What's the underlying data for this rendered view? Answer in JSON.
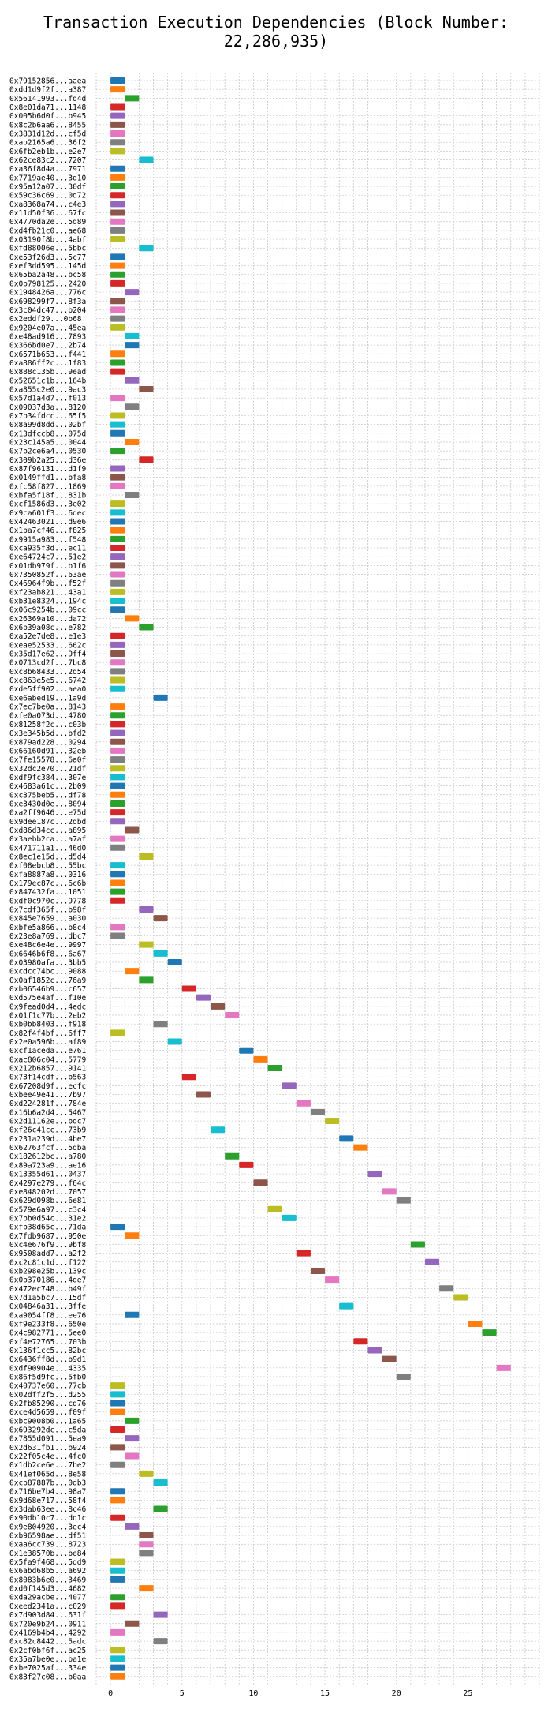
{
  "chart_data": {
    "type": "bar",
    "orientation": "horizontal",
    "title": "Transaction Execution Dependencies (Block Number: 22,286,935)",
    "xlabel": "",
    "ylabel": "",
    "xlim": [
      -1,
      30
    ],
    "xticks": [
      0,
      5,
      10,
      15,
      20,
      25
    ],
    "grid": true,
    "bar_width": 1,
    "palette": [
      "#1f77b4",
      "#ff7f0e",
      "#2ca02c",
      "#d62728",
      "#9467bd",
      "#8c564b",
      "#e377c2",
      "#7f7f7f",
      "#bcbd22",
      "#17becf"
    ],
    "transactions": [
      {
        "label": "0x79152856...aaea",
        "start": 0
      },
      {
        "label": "0xdd1d9f2f...a387",
        "start": 0
      },
      {
        "label": "0x56141993...fd4d",
        "start": 1
      },
      {
        "label": "0x8e01da71...1148",
        "start": 0
      },
      {
        "label": "0x005b6d0f...b945",
        "start": 0
      },
      {
        "label": "0x8c2b6aa6...8455",
        "start": 0
      },
      {
        "label": "0x3831d12d...cf5d",
        "start": 0
      },
      {
        "label": "0xab2165a6...36f2",
        "start": 0
      },
      {
        "label": "0x6fb2eb1b...e2e7",
        "start": 0
      },
      {
        "label": "0x62ce83c2...7207",
        "start": 2
      },
      {
        "label": "0xa36f8d4a...7971",
        "start": 0
      },
      {
        "label": "0x7719ae40...3d10",
        "start": 0
      },
      {
        "label": "0x95a12a07...30df",
        "start": 0
      },
      {
        "label": "0x59c36c69...0d72",
        "start": 0
      },
      {
        "label": "0xa8368a74...c4e3",
        "start": 0
      },
      {
        "label": "0x11d50f36...67fc",
        "start": 0
      },
      {
        "label": "0x4770da2e...5d89",
        "start": 0
      },
      {
        "label": "0xd4fb21c0...ae68",
        "start": 0
      },
      {
        "label": "0x03190f8b...4abf",
        "start": 0
      },
      {
        "label": "0xfd88006e...5bbc",
        "start": 2
      },
      {
        "label": "0xe53f26d3...5c77",
        "start": 0
      },
      {
        "label": "0xef3dd595...145d",
        "start": 0
      },
      {
        "label": "0x65ba2a48...bc58",
        "start": 0
      },
      {
        "label": "0x0b798125...2420",
        "start": 0
      },
      {
        "label": "0x1948426a...776c",
        "start": 1
      },
      {
        "label": "0x698299f7...8f3a",
        "start": 0
      },
      {
        "label": "0x3c04dc47...b204",
        "start": 0
      },
      {
        "label": "0x2eddf29...0b68",
        "start": 0
      },
      {
        "label": "0x9204e07a...45ea",
        "start": 0
      },
      {
        "label": "0xe48ad916...7893",
        "start": 1
      },
      {
        "label": "0x366bd0e7...2b74",
        "start": 1
      },
      {
        "label": "0x6571b653...f441",
        "start": 0
      },
      {
        "label": "0xa886ff2c...1f83",
        "start": 0
      },
      {
        "label": "0x888c135b...9ead",
        "start": 0
      },
      {
        "label": "0x52651c1b...164b",
        "start": 1
      },
      {
        "label": "0xa855c2e0...9ac3",
        "start": 2
      },
      {
        "label": "0x57d1a4d7...f013",
        "start": 0
      },
      {
        "label": "0x09037d3a...8120",
        "start": 1
      },
      {
        "label": "0x7b34fdcc...65f5",
        "start": 0
      },
      {
        "label": "0x8a99d8dd...02bf",
        "start": 0
      },
      {
        "label": "0x13dfccb8...075d",
        "start": 0
      },
      {
        "label": "0x23c145a5...0044",
        "start": 1
      },
      {
        "label": "0x7b2ce6a4...0530",
        "start": 0
      },
      {
        "label": "0x309b2a25...d36e",
        "start": 2
      },
      {
        "label": "0x87f96131...d1f9",
        "start": 0
      },
      {
        "label": "0x0149ffd1...bfa8",
        "start": 0
      },
      {
        "label": "0xfc58f827...1869",
        "start": 0
      },
      {
        "label": "0xbfa5f18f...831b",
        "start": 1
      },
      {
        "label": "0xcf1586d3...3e02",
        "start": 0
      },
      {
        "label": "0x9ca601f3...6dec",
        "start": 0
      },
      {
        "label": "0x42463021...d9e6",
        "start": 0
      },
      {
        "label": "0x1ba7cf46...f825",
        "start": 0
      },
      {
        "label": "0x9915a983...f548",
        "start": 0
      },
      {
        "label": "0xca935f3d...ec11",
        "start": 0
      },
      {
        "label": "0xe64724c7...51e2",
        "start": 0
      },
      {
        "label": "0x01db979f...b1f6",
        "start": 0
      },
      {
        "label": "0x7350852f...63ae",
        "start": 0
      },
      {
        "label": "0x46964f9b...f52f",
        "start": 0
      },
      {
        "label": "0xf23ab821...43a1",
        "start": 0
      },
      {
        "label": "0xb31e8324...194c",
        "start": 0
      },
      {
        "label": "0x06c9254b...09cc",
        "start": 0
      },
      {
        "label": "0x26369a10...da72",
        "start": 1
      },
      {
        "label": "0x6b39a08c...e782",
        "start": 2
      },
      {
        "label": "0xa52e7de8...e1e3",
        "start": 0
      },
      {
        "label": "0xeae52533...662c",
        "start": 0
      },
      {
        "label": "0x35d17e62...9ff4",
        "start": 0
      },
      {
        "label": "0x0713cd2f...7bc8",
        "start": 0
      },
      {
        "label": "0xc8b68433...2d54",
        "start": 0
      },
      {
        "label": "0xc863e5e5...6742",
        "start": 0
      },
      {
        "label": "0xde5ff902...aea0",
        "start": 0
      },
      {
        "label": "0xe6abed19...1a9d",
        "start": 3
      },
      {
        "label": "0x7ec7be0a...8143",
        "start": 0
      },
      {
        "label": "0xfe0a073d...4780",
        "start": 0
      },
      {
        "label": "0x81258f2c...c03b",
        "start": 0
      },
      {
        "label": "0x3e345b5d...bfd2",
        "start": 0
      },
      {
        "label": "0x879ad228...0294",
        "start": 0
      },
      {
        "label": "0x66160d91...32eb",
        "start": 0
      },
      {
        "label": "0x7fe15578...6a0f",
        "start": 0
      },
      {
        "label": "0x32dc2e70...21df",
        "start": 0
      },
      {
        "label": "0xdf9fc384...307e",
        "start": 0
      },
      {
        "label": "0x4683a61c...2b09",
        "start": 0
      },
      {
        "label": "0xc375beb5...df78",
        "start": 0
      },
      {
        "label": "0xe3430d0e...8094",
        "start": 0
      },
      {
        "label": "0xa2ff9646...e75d",
        "start": 0
      },
      {
        "label": "0x9dee187c...2dbd",
        "start": 0
      },
      {
        "label": "0xd86d34cc...a895",
        "start": 1
      },
      {
        "label": "0x3aebb2ca...a7af",
        "start": 0
      },
      {
        "label": "0x471711a1...46d0",
        "start": 0
      },
      {
        "label": "0x8ec1e15d...d5d4",
        "start": 2
      },
      {
        "label": "0xf08ebcb8...55bc",
        "start": 0
      },
      {
        "label": "0xfa8887a8...0316",
        "start": 0
      },
      {
        "label": "0x179ec87c...6c6b",
        "start": 0
      },
      {
        "label": "0x847432fa...1051",
        "start": 0
      },
      {
        "label": "0xdf0c970c...9778",
        "start": 0
      },
      {
        "label": "0x7cdf365f...b98f",
        "start": 2
      },
      {
        "label": "0x845e7659...a030",
        "start": 3
      },
      {
        "label": "0xbfe5a866...b8c4",
        "start": 0
      },
      {
        "label": "0x23e8a769...dbc7",
        "start": 0
      },
      {
        "label": "0xe48c6e4e...9997",
        "start": 2
      },
      {
        "label": "0x6646b6f8...6a67",
        "start": 3
      },
      {
        "label": "0x03980afa...3bb5",
        "start": 4
      },
      {
        "label": "0xcdcc74bc...9088",
        "start": 1
      },
      {
        "label": "0x0af1852c...76a9",
        "start": 2
      },
      {
        "label": "0xb06546b9...c657",
        "start": 5
      },
      {
        "label": "0xd575e4af...f10e",
        "start": 6
      },
      {
        "label": "0x9fead0d4...4edc",
        "start": 7
      },
      {
        "label": "0x01f1c77b...2eb2",
        "start": 8
      },
      {
        "label": "0xb0bb8403...f918",
        "start": 3
      },
      {
        "label": "0x82f4f4bf...6ff7",
        "start": 0
      },
      {
        "label": "0x2e0a596b...af89",
        "start": 4
      },
      {
        "label": "0xcf1aceda...e761",
        "start": 9
      },
      {
        "label": "0xac806c04...5779",
        "start": 10
      },
      {
        "label": "0x212b6857...9141",
        "start": 11
      },
      {
        "label": "0x73f14cdf...b563",
        "start": 5
      },
      {
        "label": "0x67208d9f...ecfc",
        "start": 12
      },
      {
        "label": "0xbee49e41...7b97",
        "start": 6
      },
      {
        "label": "0xd224281f...784e",
        "start": 13
      },
      {
        "label": "0x16b6a2d4...5467",
        "start": 14
      },
      {
        "label": "0x2d11162e...bdc7",
        "start": 15
      },
      {
        "label": "0xf26c41cc...73b9",
        "start": 7
      },
      {
        "label": "0x231a239d...4be7",
        "start": 16
      },
      {
        "label": "0x62763fcf...5dba",
        "start": 17
      },
      {
        "label": "0x182612bc...a780",
        "start": 8
      },
      {
        "label": "0x89a723a9...ae16",
        "start": 9
      },
      {
        "label": "0x13355d61...0437",
        "start": 18
      },
      {
        "label": "0x4297e279...f64c",
        "start": 10
      },
      {
        "label": "0xe848202d...7057",
        "start": 19
      },
      {
        "label": "0x629d098b...6e81",
        "start": 20
      },
      {
        "label": "0x579e6a97...c3c4",
        "start": 11
      },
      {
        "label": "0x7bb0d54c...31e2",
        "start": 12
      },
      {
        "label": "0xfb38d65c...71da",
        "start": 0
      },
      {
        "label": "0x7fdb9687...950e",
        "start": 1
      },
      {
        "label": "0xc4e676f9...9bf8",
        "start": 21
      },
      {
        "label": "0x9508add7...a2f2",
        "start": 13
      },
      {
        "label": "0xc2c81c1d...f122",
        "start": 22
      },
      {
        "label": "0xb298e25b...139c",
        "start": 14
      },
      {
        "label": "0x0b370186...4de7",
        "start": 15
      },
      {
        "label": "0x472ec748...b49f",
        "start": 23
      },
      {
        "label": "0x7d1a5bc7...15df",
        "start": 24
      },
      {
        "label": "0x04846a31...3ffe",
        "start": 16
      },
      {
        "label": "0xa9054ff8...ee76",
        "start": 1
      },
      {
        "label": "0xf9e233f8...650e",
        "start": 25
      },
      {
        "label": "0x4c982771...5ee0",
        "start": 26
      },
      {
        "label": "0xf4e72765...703b",
        "start": 17
      },
      {
        "label": "0x136f1cc5...82bc",
        "start": 18
      },
      {
        "label": "0x6436ff8d...b9d1",
        "start": 19
      },
      {
        "label": "0xdf90904e...4335",
        "start": 27
      },
      {
        "label": "0x86f5d9fc...5fb0",
        "start": 20
      },
      {
        "label": "0x40737e60...77cb",
        "start": 0
      },
      {
        "label": "0x02dff2f5...d255",
        "start": 0
      },
      {
        "label": "0x2fb85290...cd76",
        "start": 0
      },
      {
        "label": "0xce4d5659...f09f",
        "start": 0
      },
      {
        "label": "0xbc9008b0...1a65",
        "start": 1
      },
      {
        "label": "0x693292dc...c5da",
        "start": 0
      },
      {
        "label": "0x7855d091...5ea9",
        "start": 1
      },
      {
        "label": "0x2d631fb1...b924",
        "start": 0
      },
      {
        "label": "0x22f05c4e...4fc0",
        "start": 1
      },
      {
        "label": "0x1db2ce6e...7be2",
        "start": 0
      },
      {
        "label": "0x41ef065d...8e58",
        "start": 2
      },
      {
        "label": "0xcb87887b...0db3",
        "start": 3
      },
      {
        "label": "0x716be7b4...98a7",
        "start": 0
      },
      {
        "label": "0x9d68e717...58f4",
        "start": 0
      },
      {
        "label": "0x3dab63ee...8c46",
        "start": 3
      },
      {
        "label": "0x90db10c7...dd1c",
        "start": 0
      },
      {
        "label": "0x9e804920...3ec4",
        "start": 1
      },
      {
        "label": "0xb96598ae...df51",
        "start": 2
      },
      {
        "label": "0xaa6cc739...8723",
        "start": 2
      },
      {
        "label": "0x1e38570b...be84",
        "start": 2
      },
      {
        "label": "0x5fa9f468...5dd9",
        "start": 0
      },
      {
        "label": "0x6abd68b5...a692",
        "start": 0
      },
      {
        "label": "0x8083b6e0...3469",
        "start": 0
      },
      {
        "label": "0xd0f145d3...4682",
        "start": 2
      },
      {
        "label": "0xda29acbe...4077",
        "start": 0
      },
      {
        "label": "0xeed2341a...c029",
        "start": 0
      },
      {
        "label": "0x7d903d84...631f",
        "start": 3
      },
      {
        "label": "0x720e9b24...0911",
        "start": 1
      },
      {
        "label": "0x4169b4b4...4292",
        "start": 0
      },
      {
        "label": "0xc82c8442...5adc",
        "start": 3
      },
      {
        "label": "0x2cf0bf6f...ac25",
        "start": 0
      },
      {
        "label": "0x35a7be0e...ba1e",
        "start": 0
      },
      {
        "label": "0xbe7025af...334e",
        "start": 0
      },
      {
        "label": "0x83f27c08...b0aa",
        "start": 0
      }
    ]
  }
}
